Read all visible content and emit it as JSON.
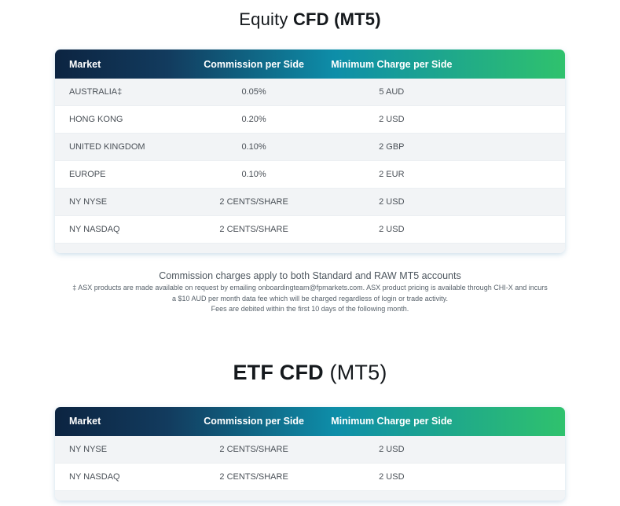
{
  "colors": {
    "gradient_start": "#0c2441",
    "gradient_mid": "#0e8ea9",
    "gradient_end": "#2fc26d",
    "row_alt_background": "#f2f4f6",
    "row_background": "#ffffff",
    "header_text": "#ffffff",
    "cell_text": "#4a5057",
    "title_text": "#15191d",
    "footnote_text": "#58626b"
  },
  "tables": [
    {
      "title_part1": "Equity",
      "title_part2": "CFD (MT5)",
      "columns": [
        "Market",
        "Commission per Side",
        "Minimum Charge per Side"
      ],
      "rows": [
        [
          "AUSTRALIA‡",
          "0.05%",
          "5 AUD"
        ],
        [
          "HONG KONG",
          "0.20%",
          "2 USD"
        ],
        [
          "UNITED KINGDOM",
          "0.10%",
          "2 GBP"
        ],
        [
          "EUROPE",
          "0.10%",
          "2 EUR"
        ],
        [
          "NY NYSE",
          "2 CENTS/SHARE",
          "2 USD"
        ],
        [
          "NY NASDAQ",
          "2 CENTS/SHARE",
          "2 USD"
        ]
      ]
    },
    {
      "title_part1": "ETF CFD",
      "title_part2": "(MT5)",
      "columns": [
        "Market",
        "Commission per Side",
        "Minimum Charge per Side"
      ],
      "rows": [
        [
          "NY NYSE",
          "2 CENTS/SHARE",
          "2 USD"
        ],
        [
          "NY NASDAQ",
          "2 CENTS/SHARE",
          "2 USD"
        ]
      ]
    }
  ],
  "footnotes": {
    "main": "Commission charges apply to both Standard and RAW MT5 accounts",
    "line1": "‡ ASX products are made available on request by emailing onboardingteam@fpmarkets.com. ASX product pricing is available through CHI-X and incurs",
    "line2": "a $10 AUD per month data fee which will be charged regardless of login or trade activity.",
    "line3": "Fees are debited within the first 10 days of the following month."
  }
}
